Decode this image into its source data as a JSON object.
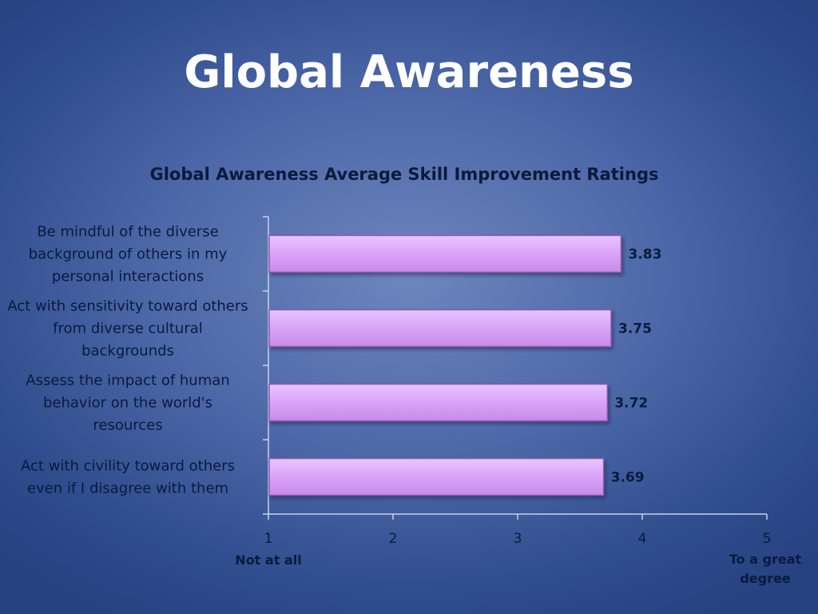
{
  "slide": {
    "title": "Global Awareness"
  },
  "colors": {
    "bar_fill": "#d9a3f8",
    "bar_border": "#8a5aa8",
    "text": "#0b1a3c",
    "background": "#4d68a8"
  },
  "chart_data": {
    "type": "bar",
    "orientation": "horizontal",
    "title": "Global Awareness Average Skill Improvement Ratings",
    "categories": [
      [
        "Be mindful of the diverse",
        "background of others in my",
        "personal interactions"
      ],
      [
        "Act with sensitivity toward others",
        "from diverse cultural",
        "backgrounds"
      ],
      [
        "Assess the impact of human",
        "behavior on the world's",
        "resources"
      ],
      [
        "Act with civility toward others",
        "even if I disagree with them"
      ]
    ],
    "values": [
      3.83,
      3.75,
      3.72,
      3.69
    ],
    "value_labels": [
      "3.83",
      "3.75",
      "3.72",
      "3.69"
    ],
    "xlim": [
      1,
      5
    ],
    "ticks": [
      "1",
      "2",
      "3",
      "4",
      "5"
    ],
    "scale_labels": {
      "low": "Not at all",
      "high": [
        "To a great",
        "degree"
      ]
    },
    "grid": false
  }
}
